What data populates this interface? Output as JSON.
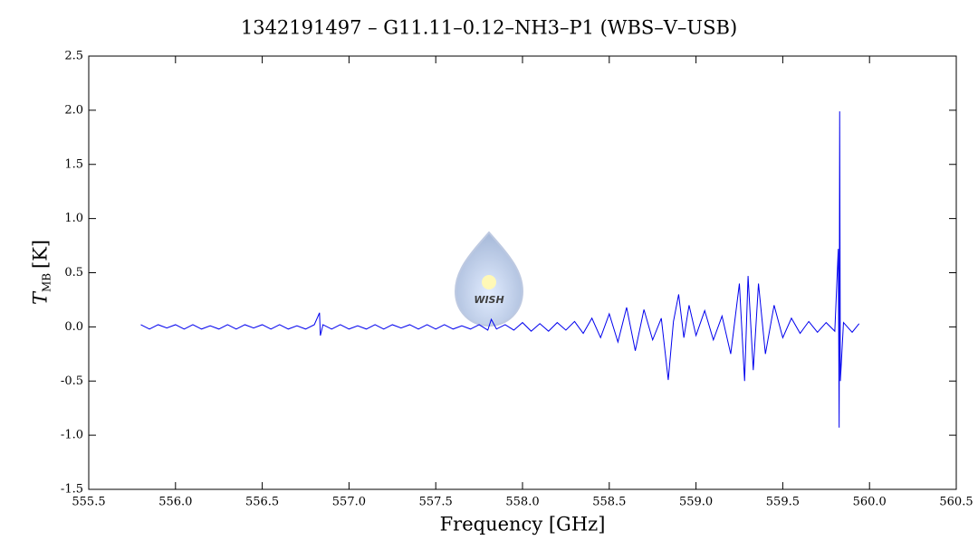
{
  "chart_data": {
    "type": "line",
    "title": "1342191497 – G11.11–0.12–NH3–P1 (WBS–V–USB)",
    "x_label": "Frequency [GHz]",
    "y_label": "T",
    "y_label_sub": "MB",
    "y_label_unit": "[K]",
    "watermark": "WISH",
    "xlim": [
      555.5,
      560.5
    ],
    "xticks": [
      555.5,
      {
        "value": 556,
        "label": "556.0"
      },
      556.5,
      {
        "value": 557,
        "label": "557.0"
      },
      557.5,
      {
        "value": 558,
        "label": "558.0"
      },
      558.5,
      {
        "value": 559,
        "label": "559.0"
      },
      559.5,
      {
        "value": 560,
        "label": "560.0"
      },
      560.5
    ],
    "ylim": [
      -1.5,
      2.5
    ],
    "yticks": [
      -1.5,
      {
        "value": -1,
        "label": "-1.0"
      },
      -0.5,
      {
        "value": 0,
        "label": "0.0"
      },
      0.5,
      {
        "value": 1,
        "label": "1.0"
      },
      1.5,
      {
        "value": 2,
        "label": "2.0"
      },
      2.5
    ],
    "series": [
      {
        "color": "#0000ee",
        "x": [
          555.8,
          555.85,
          555.9,
          555.95,
          556.0,
          556.05,
          556.1,
          556.15,
          556.2,
          556.25,
          556.3,
          556.35,
          556.4,
          556.45,
          556.5,
          556.55,
          556.6,
          556.65,
          556.7,
          556.75,
          556.8,
          556.83,
          556.835,
          556.85,
          556.9,
          556.95,
          557.0,
          557.05,
          557.1,
          557.15,
          557.2,
          557.25,
          557.3,
          557.35,
          557.4,
          557.45,
          557.5,
          557.55,
          557.6,
          557.65,
          557.7,
          557.75,
          557.8,
          557.82,
          557.85,
          557.9,
          557.95,
          558.0,
          558.05,
          558.1,
          558.15,
          558.2,
          558.25,
          558.3,
          558.35,
          558.4,
          558.45,
          558.5,
          558.55,
          558.6,
          558.65,
          558.7,
          558.75,
          558.8,
          558.84,
          558.87,
          558.9,
          558.93,
          558.96,
          559.0,
          559.05,
          559.1,
          559.15,
          559.2,
          559.25,
          559.28,
          559.3,
          559.33,
          559.36,
          559.4,
          559.45,
          559.5,
          559.55,
          559.6,
          559.65,
          559.7,
          559.75,
          559.8,
          559.82,
          559.825,
          559.828,
          559.832,
          559.85,
          559.9,
          559.94
        ],
        "values": [
          0.02,
          -0.02,
          0.02,
          -0.01,
          0.02,
          -0.02,
          0.02,
          -0.02,
          0.01,
          -0.02,
          0.02,
          -0.02,
          0.02,
          -0.01,
          0.02,
          -0.02,
          0.02,
          -0.02,
          0.01,
          -0.02,
          0.02,
          0.13,
          -0.08,
          0.02,
          -0.02,
          0.02,
          -0.02,
          0.01,
          -0.02,
          0.02,
          -0.02,
          0.02,
          -0.01,
          0.02,
          -0.02,
          0.02,
          -0.02,
          0.02,
          -0.02,
          0.01,
          -0.02,
          0.02,
          -0.03,
          0.07,
          -0.02,
          0.02,
          -0.03,
          0.04,
          -0.04,
          0.03,
          -0.04,
          0.04,
          -0.03,
          0.05,
          -0.06,
          0.08,
          -0.1,
          0.12,
          -0.14,
          0.18,
          -0.22,
          0.16,
          -0.12,
          0.08,
          -0.49,
          0.05,
          0.3,
          -0.1,
          0.2,
          -0.08,
          0.15,
          -0.12,
          0.1,
          -0.25,
          0.4,
          -0.5,
          0.47,
          -0.4,
          0.4,
          -0.25,
          0.2,
          -0.1,
          0.08,
          -0.06,
          0.05,
          -0.05,
          0.04,
          -0.04,
          0.72,
          -0.93,
          1.99,
          -0.5,
          0.04,
          -0.05,
          0.03
        ]
      }
    ]
  }
}
